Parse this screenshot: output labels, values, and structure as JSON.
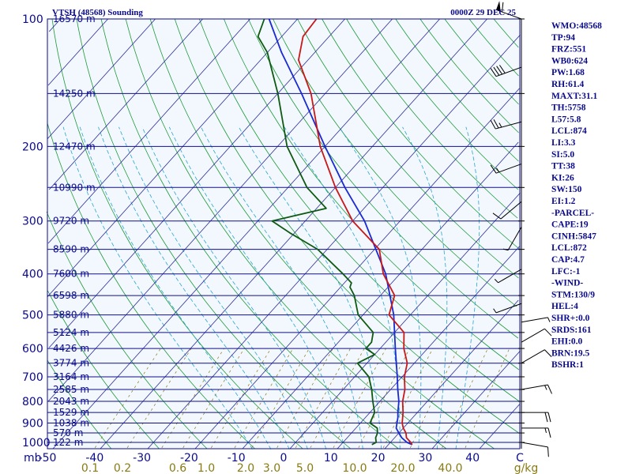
{
  "title_left": "VTSH (48568) Sounding",
  "title_right": "0000Z 29 DEC 25",
  "colors": {
    "plot_bg": "#f2f8fd",
    "isobar": "#10108a",
    "isotherm": "#2a2a9a",
    "dry_adiabat": "#1f9a3a",
    "moist_adiabat": "#2aa4d0",
    "mixing_ratio": "#8a7a10",
    "temperature": "#c81818",
    "dewpoint": "#0f5a12",
    "parcel": "#1a2ad0",
    "frame": "#0a0a8c"
  },
  "chart_data": {
    "type": "skew-t",
    "pressure_unit": "mb",
    "temperature_unit": "C",
    "p_top": 100,
    "p_bottom": 1050,
    "t_range_at_bottom": [
      -50,
      50
    ],
    "pressure_ticks": [
      100,
      200,
      300,
      400,
      500,
      600,
      700,
      800,
      900,
      1000
    ],
    "temperature_ticks": [
      "-50",
      "-40",
      "-30",
      "-20",
      "-10",
      "0",
      "10",
      "20",
      "30",
      "40",
      "C"
    ],
    "mixing_ratio_ticks": [
      "0.1",
      "0.2",
      "0.6",
      "1.0",
      "2.0",
      "3.0",
      "5.0",
      "10.0",
      "20.0",
      "40.0",
      "g/kg"
    ],
    "heights": [
      {
        "p": 100,
        "label": "16570 m"
      },
      {
        "p": 150,
        "label": "14250 m"
      },
      {
        "p": 200,
        "label": "12470 m"
      },
      {
        "p": 250,
        "label": "10990 m"
      },
      {
        "p": 300,
        "label": "9720 m"
      },
      {
        "p": 350,
        "label": "8590 m"
      },
      {
        "p": 400,
        "label": "7600 m"
      },
      {
        "p": 450,
        "label": "6598 m"
      },
      {
        "p": 500,
        "label": "5880 m"
      },
      {
        "p": 550,
        "label": "5124 m"
      },
      {
        "p": 600,
        "label": "4426 m"
      },
      {
        "p": 650,
        "label": "3774 m"
      },
      {
        "p": 700,
        "label": "3164 m"
      },
      {
        "p": 750,
        "label": "2585 m"
      },
      {
        "p": 800,
        "label": "2043 m"
      },
      {
        "p": 850,
        "label": "1529 m"
      },
      {
        "p": 900,
        "label": "1038 m"
      },
      {
        "p": 950,
        "label": "570 m"
      },
      {
        "p": 1000,
        "label": "122 m"
      }
    ],
    "temperature_profile": [
      [
        1012,
        25.0
      ],
      [
        1000,
        24.3
      ],
      [
        975,
        22.5
      ],
      [
        950,
        21.5
      ],
      [
        925,
        20.0
      ],
      [
        900,
        18.8
      ],
      [
        850,
        17.0
      ],
      [
        800,
        14.8
      ],
      [
        750,
        13.0
      ],
      [
        700,
        10.5
      ],
      [
        650,
        8.5
      ],
      [
        600,
        5.0
      ],
      [
        550,
        2.0
      ],
      [
        500,
        -4.5
      ],
      [
        450,
        -7.0
      ],
      [
        400,
        -13.5
      ],
      [
        350,
        -19.0
      ],
      [
        300,
        -30.0
      ],
      [
        250,
        -40.0
      ],
      [
        200,
        -51.0
      ],
      [
        150,
        -63.0
      ],
      [
        125,
        -72.0
      ],
      [
        110,
        -75.5
      ],
      [
        100,
        -76.0
      ]
    ],
    "dewpoint_profile": [
      [
        1012,
        16.5
      ],
      [
        1000,
        17.0
      ],
      [
        975,
        16.0
      ],
      [
        950,
        15.5
      ],
      [
        925,
        14.5
      ],
      [
        900,
        12.0
      ],
      [
        850,
        11.0
      ],
      [
        800,
        8.5
      ],
      [
        750,
        6.0
      ],
      [
        700,
        3.0
      ],
      [
        650,
        -2.0
      ],
      [
        620,
        0.0
      ],
      [
        600,
        -3.0
      ],
      [
        580,
        -3.0
      ],
      [
        550,
        -4.5
      ],
      [
        500,
        -11.0
      ],
      [
        450,
        -15.5
      ],
      [
        430,
        -18.0
      ],
      [
        420,
        -18.5
      ],
      [
        400,
        -22.0
      ],
      [
        350,
        -32.0
      ],
      [
        320,
        -41.0
      ],
      [
        300,
        -47.0
      ],
      [
        280,
        -38.0
      ],
      [
        250,
        -46.0
      ],
      [
        200,
        -58.0
      ],
      [
        150,
        -70.0
      ],
      [
        120,
        -80.0
      ],
      [
        110,
        -85.0
      ],
      [
        100,
        -87.0
      ]
    ],
    "parcel_profile": [
      [
        1012,
        25.0
      ],
      [
        1000,
        23.5
      ],
      [
        975,
        21.5
      ],
      [
        950,
        20.0
      ],
      [
        925,
        18.5
      ],
      [
        872,
        16.8
      ],
      [
        850,
        15.9
      ],
      [
        800,
        14.0
      ],
      [
        750,
        11.5
      ],
      [
        700,
        9.0
      ],
      [
        600,
        3.2
      ],
      [
        500,
        -3.5
      ],
      [
        400,
        -13.0
      ],
      [
        300,
        -27.5
      ],
      [
        250,
        -38.0
      ],
      [
        200,
        -50.0
      ],
      [
        150,
        -65.0
      ],
      [
        120,
        -77.0
      ],
      [
        100,
        -86.0
      ]
    ],
    "wind_barbs": [
      {
        "p": 100,
        "dir": 290,
        "spd": 60
      },
      {
        "p": 130,
        "dir": 250,
        "spd": 40
      },
      {
        "p": 175,
        "dir": 255,
        "spd": 25
      },
      {
        "p": 220,
        "dir": 250,
        "spd": 15
      },
      {
        "p": 270,
        "dir": 230,
        "spd": 10
      },
      {
        "p": 310,
        "dir": 210,
        "spd": 5
      },
      {
        "p": 390,
        "dir": 240,
        "spd": 5
      },
      {
        "p": 470,
        "dir": 250,
        "spd": 5
      },
      {
        "p": 520,
        "dir": 80,
        "spd": 5
      },
      {
        "p": 580,
        "dir": 60,
        "spd": 10
      },
      {
        "p": 650,
        "dir": 60,
        "spd": 10
      },
      {
        "p": 750,
        "dir": 80,
        "spd": 15
      },
      {
        "p": 850,
        "dir": 90,
        "spd": 20
      },
      {
        "p": 925,
        "dir": 90,
        "spd": 15
      },
      {
        "p": 1000,
        "dir": 100,
        "spd": 10
      }
    ]
  },
  "indices": [
    "WMO:48568",
    "TP:94",
    "FRZ:551",
    "WB0:624",
    "PW:1.68",
    "RH:61.4",
    "MAXT:31.1",
    "TH:5758",
    "L57:5.8",
    "LCL:874",
    "LI:3.3",
    "SI:5.0",
    "TT:38",
    "KI:26",
    "SW:150",
    "EI:1.2",
    "-PARCEL-",
    "CAPE:19",
    "CINH:5847",
    "LCL:872",
    "CAP:4.7",
    "LFC:-1",
    "-WIND-",
    "STM:130/9",
    "HEL:4",
    "SHR+:0.0",
    "SRDS:161",
    "EHI:0.0",
    "BRN:19.5",
    "BSHR:1"
  ]
}
